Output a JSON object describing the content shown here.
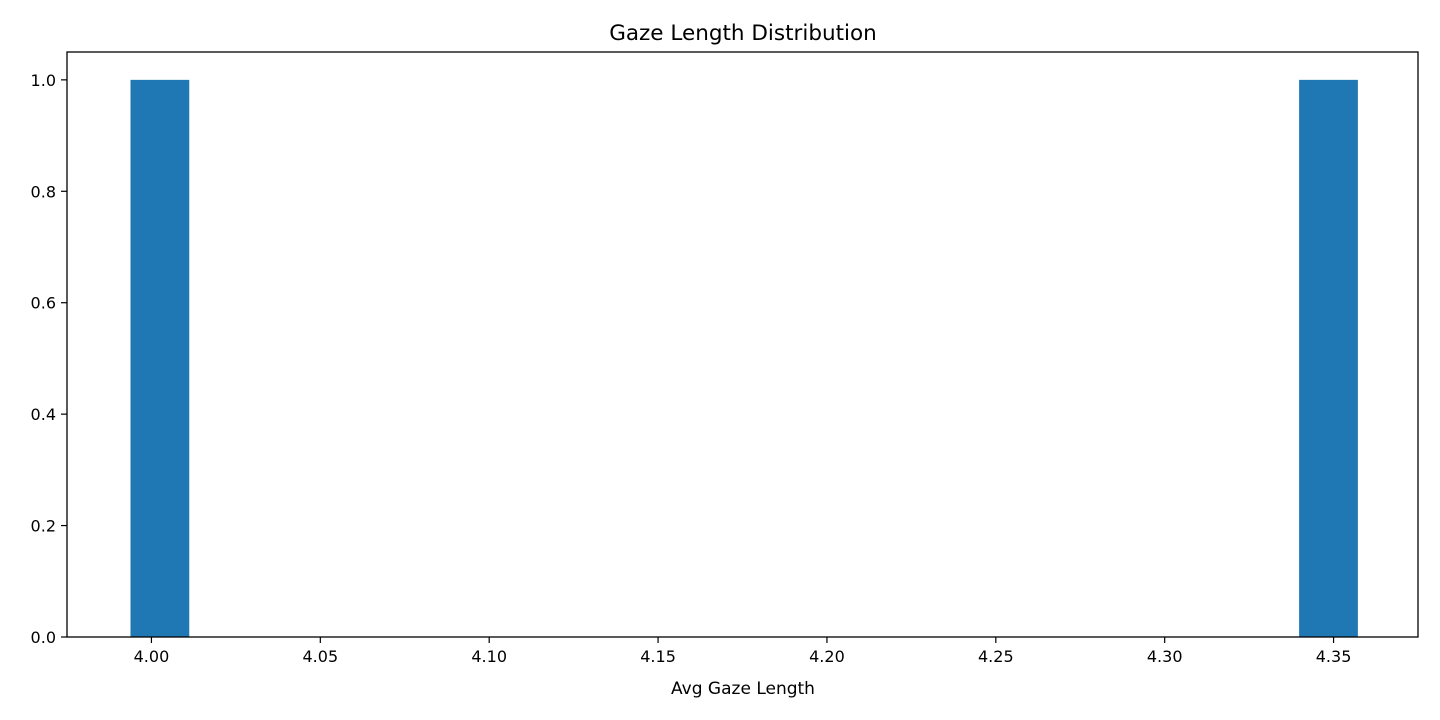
{
  "chart_data": {
    "type": "bar",
    "title": "Gaze Length Distribution",
    "xlabel": "Avg Gaze Length",
    "ylabel": "",
    "bins": [
      {
        "start": 3.9938,
        "end": 4.0112,
        "count": 1
      },
      {
        "start": 4.3398,
        "end": 4.3572,
        "count": 1
      }
    ],
    "xlim": [
      3.975,
      4.375
    ],
    "ylim": [
      0,
      1.05
    ],
    "x_ticks": [
      4.0,
      4.05,
      4.1,
      4.15,
      4.2,
      4.25,
      4.3,
      4.35
    ],
    "x_tick_labels": [
      "4.00",
      "4.05",
      "4.10",
      "4.15",
      "4.20",
      "4.25",
      "4.30",
      "4.35"
    ],
    "y_ticks": [
      0.0,
      0.2,
      0.4,
      0.6,
      0.8,
      1.0
    ],
    "y_tick_labels": [
      "0.0",
      "0.2",
      "0.4",
      "0.6",
      "0.8",
      "1.0"
    ],
    "bar_color": "#1f77b4",
    "grid": false,
    "legend": "none"
  }
}
